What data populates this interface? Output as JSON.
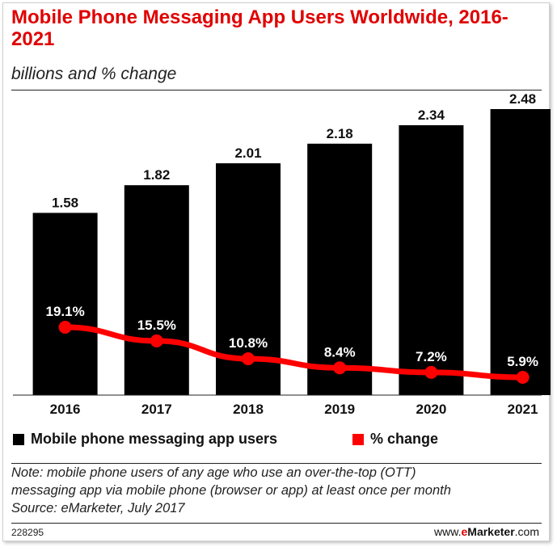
{
  "title": "Mobile Phone Messaging App Users Worldwide, 2016-2021",
  "subtitle": "billions and % change",
  "legend": [
    {
      "label": "Mobile phone messaging app users",
      "color": "#000000"
    },
    {
      "label": "% change",
      "color": "#ff0000"
    }
  ],
  "note": {
    "line1": "Note: mobile phone users of any age who use an over-the-top (OTT)",
    "line2": "messaging app via mobile phone (browser or app) at least once per month",
    "line3": "Source: eMarketer, July 2017"
  },
  "footer": {
    "chart_id": "228295",
    "brand_prefix": "www.",
    "brand_e": "e",
    "brand_main": "Marketer",
    "brand_suffix": ".com"
  },
  "colors": {
    "bar": "#000000",
    "line": "#ff0000",
    "title": "#e00000"
  },
  "chart_data": {
    "type": "bar",
    "categories": [
      "2016",
      "2017",
      "2018",
      "2019",
      "2020",
      "2021"
    ],
    "series": [
      {
        "name": "Mobile phone messaging app users",
        "type": "bar",
        "values": [
          1.58,
          1.82,
          2.01,
          2.18,
          2.34,
          2.48
        ],
        "labels": [
          "1.58",
          "1.82",
          "2.01",
          "2.18",
          "2.34",
          "2.48"
        ]
      },
      {
        "name": "% change",
        "type": "line",
        "values": [
          19.1,
          15.5,
          10.8,
          8.4,
          7.2,
          5.9
        ],
        "labels": [
          "19.1%",
          "15.5%",
          "10.8%",
          "8.4%",
          "7.2%",
          "5.9%"
        ]
      }
    ],
    "ylim": [
      0,
      2.48
    ],
    "grid": false,
    "legend_position": "bottom"
  }
}
